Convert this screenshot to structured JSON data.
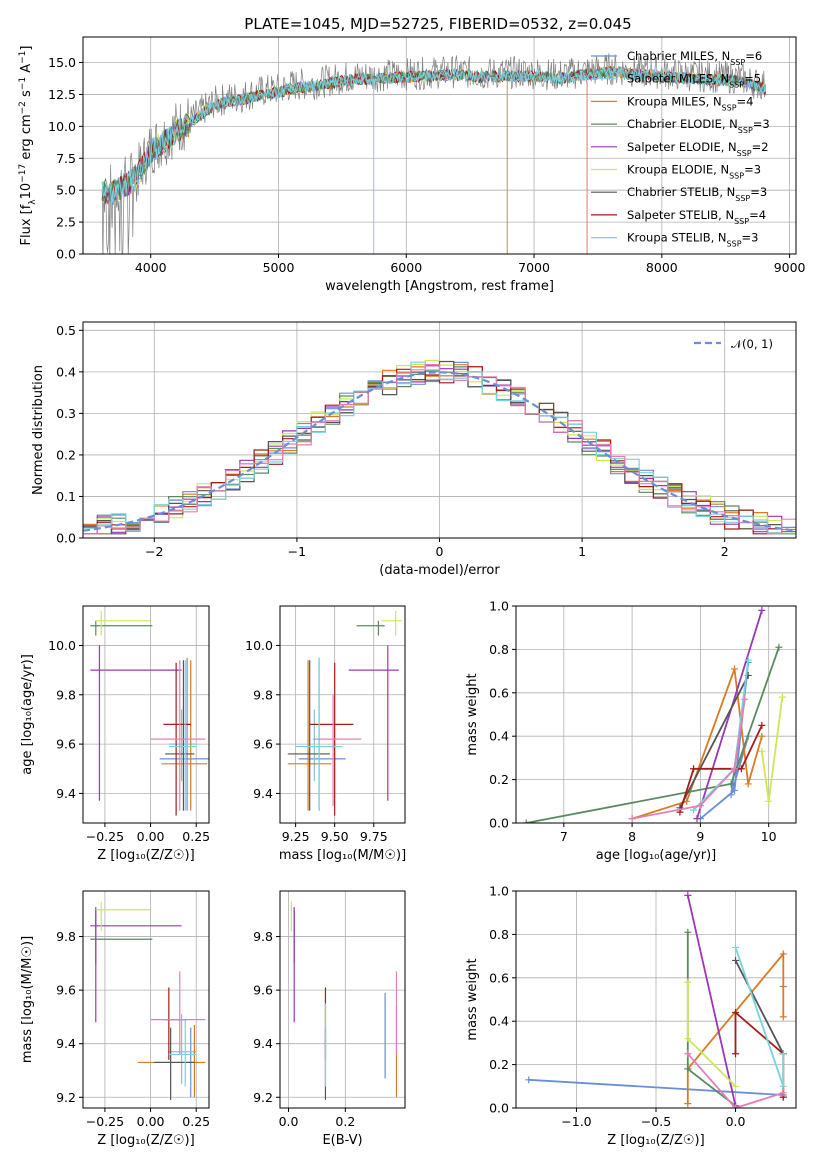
{
  "title": "PLATE=1045, MJD=52725, FIBERID=0532, z=0.045",
  "colors": [
    "#6a8fd8",
    "#8fbfd6",
    "#d97a24",
    "#5b8a60",
    "#9b36b6",
    "#cde854",
    "#555555",
    "#a51c1c",
    "#78d4dc"
  ],
  "extra_colors": {
    "pink": "#e37fb5",
    "gray": "#808080",
    "olive": "#a7a24a",
    "gauss": "#6a8fd8"
  },
  "legend_spectra": [
    "Chabrier MILES, N_SSP=6",
    "Salpeter MILES, N_SSP=5",
    "Kroupa MILES, N_SSP=4",
    "Chabrier ELODIE, N_SSP=3",
    "Salpeter ELODIE, N_SSP=2",
    "Kroupa ELODIE, N_SSP=3",
    "Chabrier STELIB, N_SSP=3",
    "Salpeter STELIB, N_SSP=4",
    "Kroupa STELIB, N_SSP=3"
  ],
  "legend_gauss": "𝒩(0, 1)",
  "chart_data": [
    {
      "id": "spectrum",
      "type": "line",
      "xlabel": "wavelength [Angstrom, rest frame]",
      "ylabel": "Flux [f_λ 10^-17 erg cm^-2 s^-1 A^-1]",
      "xlim": [
        3470,
        9050
      ],
      "ylim": [
        0,
        17
      ],
      "xticks": [
        4000,
        5000,
        6000,
        7000,
        8000,
        9000
      ],
      "yticks": [
        0.0,
        2.5,
        5.0,
        7.5,
        10.0,
        12.5,
        15.0
      ],
      "data_envelope": {
        "x": [
          3620,
          3700,
          3800,
          3900,
          4000,
          4100,
          4200,
          4300,
          4400,
          4500,
          4600,
          4700,
          4800,
          4900,
          5000,
          5100,
          5200,
          5300,
          5400,
          5500,
          5600,
          5800,
          6000,
          6200,
          6400,
          6600,
          6800,
          7000,
          7200,
          7400,
          7600,
          7800,
          8000,
          8200,
          8400,
          8600,
          8800
        ],
        "y": [
          5.2,
          5.0,
          5.6,
          6.4,
          8.3,
          9.0,
          9.9,
          10.4,
          11.2,
          11.9,
          12.2,
          12.3,
          12.6,
          12.8,
          12.9,
          13.2,
          13.3,
          13.4,
          13.6,
          13.8,
          13.9,
          14.0,
          14.1,
          14.2,
          14.3,
          14.1,
          14.2,
          14.2,
          14.0,
          14.3,
          14.5,
          14.3,
          14.2,
          14.0,
          13.9,
          13.8,
          13.2
        ]
      },
      "model_x_range": [
        3620,
        8820
      ]
    },
    {
      "id": "residuals",
      "type": "histogram",
      "xlabel": "(data-model)/error",
      "ylabel": "Normed distribution",
      "xlim": [
        -2.5,
        2.5
      ],
      "ylim": [
        0,
        0.52
      ],
      "xticks": [
        -2,
        -1,
        0,
        1,
        2
      ],
      "yticks": [
        0.0,
        0.1,
        0.2,
        0.3,
        0.4,
        0.5
      ],
      "bin_width": 0.1,
      "series": "one histogram per model configuration, following the N(0,1) profile",
      "gauss_curve": "N(0,1)"
    },
    {
      "id": "age_vs_Z",
      "type": "scatter",
      "xlabel": "Z [log10(Z/Z_sun)]",
      "ylabel": "age  [log10(age/yr)]",
      "xlim": [
        -0.37,
        0.32
      ],
      "ylim": [
        9.28,
        10.16
      ],
      "xticks": [
        -0.25,
        0.0,
        0.25
      ],
      "yticks": [
        9.4,
        9.6,
        9.8,
        10.0
      ],
      "points": [
        {
          "c": "#6a8fd8",
          "x": 0.2,
          "y": 9.54,
          "x0": 0.05,
          "x1": 0.33,
          "y0": 9.33,
          "y1": 9.95
        },
        {
          "c": "#8fbfd6",
          "x": 0.17,
          "y": 9.6,
          "x0": 0.1,
          "x1": 0.25,
          "y0": 9.45,
          "y1": 9.74
        },
        {
          "c": "#d97a24",
          "x": 0.22,
          "y": 9.52,
          "x0": 0.06,
          "x1": 0.31,
          "y0": 9.33,
          "y1": 9.94
        },
        {
          "c": "#5b8a60",
          "x": -0.3,
          "y": 10.08,
          "x0": -0.33,
          "x1": 0.01,
          "y0": 10.04,
          "y1": 10.1
        },
        {
          "c": "#9b36b6",
          "x": -0.28,
          "y": 9.9,
          "x0": -0.33,
          "x1": 0.17,
          "y0": 9.37,
          "y1": 10.0
        },
        {
          "c": "#cde854",
          "x": -0.27,
          "y": 10.1,
          "x0": -0.3,
          "x1": 0.0,
          "y0": 10.04,
          "y1": 10.14
        },
        {
          "c": "#555555",
          "x": 0.18,
          "y": 9.56,
          "x0": 0.08,
          "x1": 0.24,
          "y0": 9.33,
          "y1": 9.94
        },
        {
          "c": "#a51c1c",
          "x": 0.14,
          "y": 9.68,
          "x0": 0.07,
          "x1": 0.22,
          "y0": 9.31,
          "y1": 9.93
        },
        {
          "c": "#78d4dc",
          "x": 0.19,
          "y": 9.59,
          "x0": 0.1,
          "x1": 0.25,
          "y0": 9.33,
          "y1": 9.94
        },
        {
          "c": "#e37fb5",
          "x": 0.16,
          "y": 9.62,
          "x0": 0.0,
          "x1": 0.3,
          "y0": 9.33,
          "y1": 9.94
        }
      ]
    },
    {
      "id": "age_vs_mass",
      "type": "scatter",
      "xlabel": "mass [log10(M/M_sun)]",
      "ylabel": "",
      "xlim": [
        9.15,
        9.95
      ],
      "ylim": [
        9.28,
        10.16
      ],
      "xticks": [
        9.25,
        9.5,
        9.75
      ],
      "yticks": [
        9.4,
        9.6,
        9.8,
        10.0
      ],
      "points": [
        {
          "c": "#6a8fd8",
          "x": 9.4,
          "y": 9.54,
          "x0": 9.27,
          "x1": 9.57,
          "y0": 9.33,
          "y1": 9.95
        },
        {
          "c": "#8fbfd6",
          "x": 9.37,
          "y": 9.59,
          "x0": 9.25,
          "x1": 9.5,
          "y0": 9.45,
          "y1": 9.74
        },
        {
          "c": "#d97a24",
          "x": 9.33,
          "y": 9.52,
          "x0": 9.2,
          "x1": 9.48,
          "y0": 9.33,
          "y1": 9.94
        },
        {
          "c": "#5b8a60",
          "x": 9.78,
          "y": 10.08,
          "x0": 9.64,
          "x1": 9.82,
          "y0": 10.04,
          "y1": 10.1
        },
        {
          "c": "#9b36b6",
          "x": 9.84,
          "y": 9.9,
          "x0": 9.59,
          "x1": 9.91,
          "y0": 9.37,
          "y1": 10.0
        },
        {
          "c": "#cde854",
          "x": 9.89,
          "y": 10.1,
          "x0": 9.8,
          "x1": 9.93,
          "y0": 10.04,
          "y1": 10.14
        },
        {
          "c": "#555555",
          "x": 9.34,
          "y": 9.56,
          "x0": 9.2,
          "x1": 9.47,
          "y0": 9.33,
          "y1": 9.94
        },
        {
          "c": "#a51c1c",
          "x": 9.5,
          "y": 9.68,
          "x0": 9.34,
          "x1": 9.62,
          "y0": 9.31,
          "y1": 9.93
        },
        {
          "c": "#78d4dc",
          "x": 9.4,
          "y": 9.59,
          "x0": 9.3,
          "x1": 9.55,
          "y0": 9.33,
          "y1": 9.95
        },
        {
          "c": "#e37fb5",
          "x": 9.49,
          "y": 9.62,
          "x0": 9.36,
          "x1": 9.67,
          "y0": 9.35,
          "y1": 9.8
        }
      ]
    },
    {
      "id": "mass_vs_Z",
      "type": "scatter",
      "xlabel": "Z [log10(Z/Z_sun)]",
      "ylabel": "mass [log10(M/M_sun)]",
      "xlim": [
        -0.37,
        0.32
      ],
      "ylim": [
        9.16,
        9.97
      ],
      "xticks": [
        -0.25,
        0.0,
        0.25
      ],
      "yticks": [
        9.2,
        9.4,
        9.6,
        9.8
      ],
      "points": [
        {
          "c": "#6a8fd8",
          "x": 0.22,
          "y": 9.33,
          "x0": 0.02,
          "x1": 0.3,
          "y0": 9.2,
          "y1": 9.46
        },
        {
          "c": "#8fbfd6",
          "x": 0.17,
          "y": 9.37,
          "x0": 0.1,
          "x1": 0.25,
          "y0": 9.25,
          "y1": 9.51
        },
        {
          "c": "#d97a24",
          "x": 0.24,
          "y": 9.33,
          "x0": -0.07,
          "x1": 0.3,
          "y0": 9.2,
          "y1": 9.47
        },
        {
          "c": "#5b8a60",
          "x": -0.3,
          "y": 9.79,
          "x0": -0.33,
          "x1": 0.01,
          "y0": 9.7,
          "y1": 9.9
        },
        {
          "c": "#9b36b6",
          "x": -0.3,
          "y": 9.84,
          "x0": -0.33,
          "x1": 0.17,
          "y0": 9.48,
          "y1": 9.91
        },
        {
          "c": "#cde854",
          "x": -0.27,
          "y": 9.9,
          "x0": -0.3,
          "x1": 0.0,
          "y0": 9.82,
          "y1": 9.93
        },
        {
          "c": "#555555",
          "x": 0.11,
          "y": 9.33,
          "x0": 0.02,
          "x1": 0.24,
          "y0": 9.19,
          "y1": 9.46
        },
        {
          "c": "#a51c1c",
          "x": 0.1,
          "y": 9.49,
          "x0": 0.07,
          "x1": 0.2,
          "y0": 9.34,
          "y1": 9.61
        },
        {
          "c": "#78d4dc",
          "x": 0.19,
          "y": 9.36,
          "x0": 0.1,
          "x1": 0.25,
          "y0": 9.24,
          "y1": 9.49
        },
        {
          "c": "#e37fb5",
          "x": 0.16,
          "y": 9.49,
          "x0": 0.0,
          "x1": 0.3,
          "y0": 9.36,
          "y1": 9.67
        }
      ]
    },
    {
      "id": "mass_vs_ebv",
      "type": "scatter",
      "xlabel": "E(B-V)",
      "ylabel": "",
      "xlim": [
        -0.03,
        0.41
      ],
      "ylim": [
        9.16,
        9.97
      ],
      "xticks": [
        0.0,
        0.2
      ],
      "yticks": [
        9.2,
        9.4,
        9.6,
        9.8
      ],
      "points": [
        {
          "c": "#6a8fd8",
          "x": 0.34,
          "y": 9.43,
          "y0": 9.27,
          "y1": 9.59
        },
        {
          "c": "#d97a24",
          "x": 0.38,
          "y": 9.37,
          "y0": 9.2,
          "y1": 9.54
        },
        {
          "c": "#5b8a60",
          "x": 0.02,
          "y": 9.79,
          "y0": 9.7,
          "y1": 9.9
        },
        {
          "c": "#9b36b6",
          "x": 0.02,
          "y": 9.7,
          "y0": 9.48,
          "y1": 9.91
        },
        {
          "c": "#cde854",
          "x": 0.01,
          "y": 9.88,
          "y0": 9.82,
          "y1": 9.93
        },
        {
          "c": "#555555",
          "x": 0.13,
          "y": 9.33,
          "y0": 9.19,
          "y1": 9.46
        },
        {
          "c": "#a51c1c",
          "x": 0.13,
          "y": 9.49,
          "y0": 9.34,
          "y1": 9.61
        },
        {
          "c": "#78d4dc",
          "x": 0.13,
          "y": 9.4,
          "y0": 9.24,
          "y1": 9.55
        },
        {
          "c": "#e37fb5",
          "x": 0.38,
          "y": 9.52,
          "y0": 9.36,
          "y1": 9.67
        }
      ]
    },
    {
      "id": "weight_vs_age",
      "type": "line",
      "xlabel": "age  [log10(age/yr)]",
      "ylabel": "mass weight",
      "xlim": [
        6.3,
        10.4
      ],
      "ylim": [
        0,
        1.0
      ],
      "xticks": [
        7,
        8,
        9,
        10
      ],
      "yticks": [
        0.0,
        0.2,
        0.4,
        0.6,
        0.8,
        1.0
      ],
      "series": [
        {
          "c": "#6a8fd8",
          "x": [
            9.0,
            9.5,
            9.7,
            9.45,
            9.7
          ],
          "y": [
            0.02,
            0.15,
            0.74,
            0.13,
            0.4
          ]
        },
        {
          "c": "#d97a24",
          "x": [
            8.0,
            8.8,
            9.5,
            9.7,
            9.9
          ],
          "y": [
            0.02,
            0.1,
            0.71,
            0.18,
            0.4
          ]
        },
        {
          "c": "#5b8a60",
          "x": [
            6.45,
            9.45,
            10.15
          ],
          "y": [
            0.0,
            0.18,
            0.81
          ]
        },
        {
          "c": "#9b36b6",
          "x": [
            8.95,
            9.9
          ],
          "y": [
            0.02,
            0.98
          ]
        },
        {
          "c": "#cde854",
          "x": [
            9.9,
            10.0,
            10.2
          ],
          "y": [
            0.33,
            0.1,
            0.58
          ]
        },
        {
          "c": "#555555",
          "x": [
            8.7,
            9.7
          ],
          "y": [
            0.07,
            0.68
          ]
        },
        {
          "c": "#a51c1c",
          "x": [
            8.7,
            8.9,
            9.6,
            9.9
          ],
          "y": [
            0.05,
            0.25,
            0.25,
            0.45
          ]
        },
        {
          "c": "#78d4dc",
          "x": [
            8.9,
            9.5,
            9.7
          ],
          "y": [
            0.06,
            0.25,
            0.75
          ]
        },
        {
          "c": "#e37fb5",
          "x": [
            8.0,
            9.0,
            9.5,
            9.65
          ],
          "y": [
            0.02,
            0.08,
            0.25,
            0.57
          ]
        }
      ]
    },
    {
      "id": "weight_vs_Z",
      "type": "line",
      "xlabel": "Z [log10(Z/Z_sun)]",
      "ylabel": "mass weight",
      "xlim": [
        -1.38,
        0.38
      ],
      "ylim": [
        0,
        1.0
      ],
      "xticks": [
        -1.0,
        -0.5,
        0.0
      ],
      "yticks": [
        0.0,
        0.2,
        0.4,
        0.6,
        0.8,
        1.0
      ],
      "series": [
        {
          "c": "#6a8fd8",
          "x": [
            -1.3,
            0.3,
            0.3
          ],
          "y": [
            0.13,
            0.06,
            0.05
          ]
        },
        {
          "c": "#d97a24",
          "x": [
            -0.3,
            -0.3,
            0.3,
            0.3,
            0.3
          ],
          "y": [
            0.02,
            0.18,
            0.71,
            0.56,
            0.42
          ]
        },
        {
          "c": "#5b8a60",
          "x": [
            -0.3,
            -0.3,
            0.0
          ],
          "y": [
            0.81,
            0.18,
            0.01
          ]
        },
        {
          "c": "#9b36b6",
          "x": [
            -0.3,
            0.0
          ],
          "y": [
            0.98,
            0.01
          ]
        },
        {
          "c": "#cde854",
          "x": [
            -0.3,
            -0.3,
            0.0
          ],
          "y": [
            0.58,
            0.32,
            0.1
          ]
        },
        {
          "c": "#555555",
          "x": [
            0.0,
            0.3
          ],
          "y": [
            0.68,
            0.25
          ]
        },
        {
          "c": "#a51c1c",
          "x": [
            0.0,
            0.0,
            0.3,
            0.3
          ],
          "y": [
            0.25,
            0.44,
            0.25,
            0.05
          ]
        },
        {
          "c": "#78d4dc",
          "x": [
            0.0,
            0.3,
            0.3
          ],
          "y": [
            0.74,
            0.1,
            0.25
          ]
        },
        {
          "c": "#e37fb5",
          "x": [
            -0.3,
            0.0,
            0.3
          ],
          "y": [
            0.25,
            0.0,
            0.07
          ]
        }
      ]
    }
  ]
}
